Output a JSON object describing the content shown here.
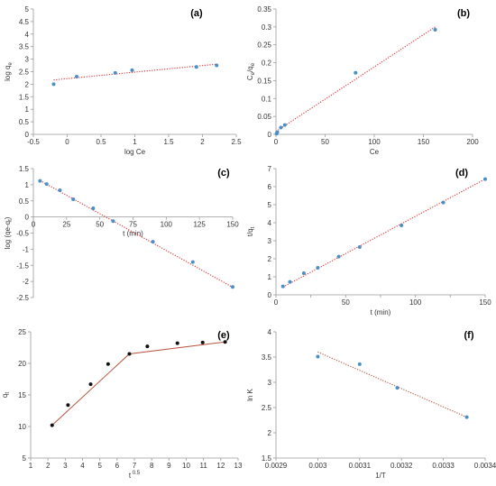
{
  "chart_data": [
    {
      "panel": "(a)",
      "type": "scatter",
      "xlabel": "log Ce",
      "ylabel": "log q",
      "ylabel_sub": "e",
      "xlim": [
        -0.5,
        2.5
      ],
      "ylim": [
        0,
        5
      ],
      "xticks": [
        -0.5,
        0,
        0.5,
        1,
        1.5,
        2,
        2.5
      ],
      "yticks": [
        0,
        0.5,
        1,
        1.5,
        2,
        2.5,
        3,
        3.5,
        4,
        4.5,
        5
      ],
      "points": [
        [
          -0.2,
          2.0
        ],
        [
          0.14,
          2.3
        ],
        [
          0.71,
          2.45
        ],
        [
          0.96,
          2.56
        ],
        [
          1.91,
          2.69
        ],
        [
          2.21,
          2.75
        ]
      ],
      "fit": {
        "style": "dotted",
        "color": "#e03030",
        "line": [
          [
            -0.2,
            2.17
          ],
          [
            2.21,
            2.8
          ]
        ]
      },
      "marker_color": "#4a8fc7"
    },
    {
      "panel": "(b)",
      "type": "scatter",
      "xlabel": "Ce",
      "ylabel": "C",
      "ylabel_sub": "e",
      "ylabel_mid": "/q",
      "ylabel_sub2": "e",
      "xlim": [
        0,
        200
      ],
      "ylim": [
        0,
        0.35
      ],
      "xticks": [
        0,
        50,
        100,
        150,
        200
      ],
      "yticks": [
        0,
        0.05,
        0.1,
        0.15,
        0.2,
        0.25,
        0.3,
        0.35
      ],
      "points": [
        [
          0.6,
          0.002
        ],
        [
          1.4,
          0.006
        ],
        [
          5,
          0.019
        ],
        [
          9,
          0.026
        ],
        [
          81,
          0.172
        ],
        [
          162,
          0.292
        ]
      ],
      "fit": {
        "style": "dotted",
        "color": "#e03030",
        "line": [
          [
            0,
            0.008
          ],
          [
            162,
            0.3
          ]
        ]
      },
      "marker_color": "#4a8fc7"
    },
    {
      "panel": "(c)",
      "type": "scatter",
      "xlabel": "t (min)",
      "ylabel": "log (qe-q",
      "ylabel_sub": "t",
      "ylabel_end": ")",
      "xlim": [
        0,
        150
      ],
      "ylim": [
        -2.5,
        1.5
      ],
      "xticks": [
        0,
        25,
        50,
        75,
        100,
        125,
        150
      ],
      "yticks": [
        -2.5,
        -2,
        -1.5,
        -1,
        -0.5,
        0,
        0.5,
        1,
        1.5
      ],
      "points": [
        [
          5,
          1.12
        ],
        [
          10,
          1.02
        ],
        [
          20,
          0.83
        ],
        [
          30,
          0.55
        ],
        [
          45,
          0.27
        ],
        [
          60,
          -0.13
        ],
        [
          90,
          -0.77
        ],
        [
          120,
          -1.4
        ],
        [
          150,
          -2.17
        ]
      ],
      "fit": {
        "style": "dotted",
        "color": "#e03030",
        "line": [
          [
            5,
            1.13
          ],
          [
            150,
            -2.18
          ]
        ]
      },
      "marker_color": "#4a8fc7"
    },
    {
      "panel": "(d)",
      "type": "scatter",
      "xlabel": "t (min)",
      "ylabel": "t/q",
      "ylabel_sub": "t",
      "xlim": [
        0,
        150
      ],
      "ylim": [
        0,
        7
      ],
      "xticks": [
        0,
        50,
        100,
        150
      ],
      "xticks_minor": [
        25,
        75,
        125
      ],
      "yticks": [
        0,
        1,
        2,
        3,
        4,
        5,
        6,
        7
      ],
      "points": [
        [
          5,
          0.47
        ],
        [
          10,
          0.72
        ],
        [
          20,
          1.2
        ],
        [
          30,
          1.5
        ],
        [
          45,
          2.12
        ],
        [
          60,
          2.65
        ],
        [
          90,
          3.85
        ],
        [
          120,
          5.12
        ],
        [
          150,
          6.42
        ]
      ],
      "fit": {
        "style": "dotted",
        "color": "#e03030",
        "line": [
          [
            5,
            0.43
          ],
          [
            150,
            6.42
          ]
        ]
      },
      "marker_color": "#4a8fc7"
    },
    {
      "panel": "(e)",
      "type": "scatter",
      "xlabel": "t",
      "xlabel_sup": "0.5",
      "ylabel": "q",
      "ylabel_sub": "t",
      "xlim": [
        1,
        13
      ],
      "ylim": [
        5,
        25
      ],
      "xticks": [
        1,
        2,
        3,
        4,
        5,
        6,
        7,
        8,
        9,
        10,
        11,
        12,
        13
      ],
      "yticks": [
        5,
        10,
        15,
        20,
        25
      ],
      "points": [
        [
          2.24,
          10.2
        ],
        [
          3.16,
          13.4
        ],
        [
          4.47,
          16.7
        ],
        [
          5.48,
          19.9
        ],
        [
          6.71,
          21.5
        ],
        [
          7.75,
          22.7
        ],
        [
          9.49,
          23.2
        ],
        [
          10.95,
          23.3
        ],
        [
          12.25,
          23.4
        ]
      ],
      "fit": {
        "style": "solid",
        "color": "#b5523b",
        "line": [
          [
            2.24,
            10.2
          ],
          [
            6.71,
            21.5
          ],
          [
            12.25,
            23.4
          ]
        ]
      },
      "marker_color": "#111111"
    },
    {
      "panel": "(f)",
      "type": "scatter",
      "xlabel": "1/T",
      "ylabel": "ln K",
      "xlim": [
        0.0029,
        0.0034
      ],
      "ylim": [
        1.5,
        4
      ],
      "xticks": [
        0.0029,
        0.003,
        0.0031,
        0.0032,
        0.0033,
        0.0034
      ],
      "xtick_labels": [
        "0.0029",
        "0.003",
        "0.0031",
        "0.0032",
        "0.0033",
        "0.0034"
      ],
      "yticks": [
        1.5,
        2,
        2.5,
        3,
        3.5,
        4
      ],
      "points": [
        [
          0.003,
          3.51
        ],
        [
          0.0031,
          3.36
        ],
        [
          0.00319,
          2.89
        ],
        [
          0.003356,
          2.31
        ]
      ],
      "fit": {
        "style": "dotted",
        "color": "#b5523b",
        "line": [
          [
            0.003,
            3.6
          ],
          [
            0.003356,
            2.31
          ]
        ]
      },
      "marker_color": "#4a8fc7"
    }
  ]
}
